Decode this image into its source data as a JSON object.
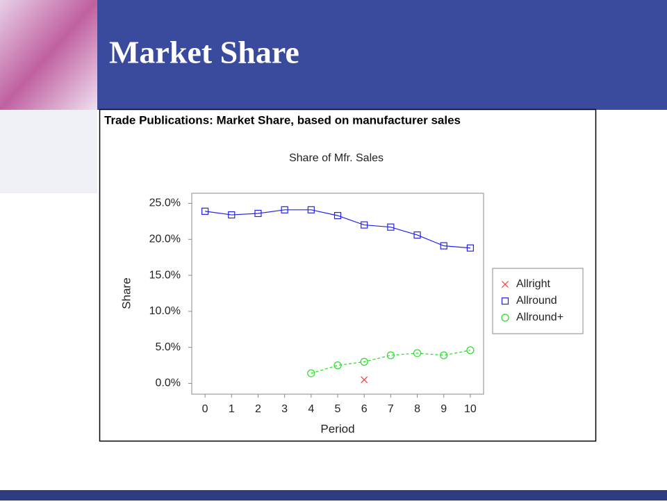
{
  "slide_title": "Market Share",
  "chart_data": {
    "type": "line",
    "heading": "Trade Publications: Market Share, based on manufacturer sales",
    "title": "Share of Mfr. Sales",
    "x_label": "Period",
    "y_label": "Share",
    "x": [
      0,
      1,
      2,
      3,
      4,
      5,
      6,
      7,
      8,
      9,
      10
    ],
    "series": [
      {
        "name": "Allright",
        "color": "#ff3333",
        "marker": "x",
        "line": "none",
        "values": [
          null,
          null,
          null,
          null,
          null,
          null,
          0.5,
          null,
          null,
          null,
          null
        ]
      },
      {
        "name": "Allround",
        "color": "#2222ee",
        "marker": "square",
        "line": "solid",
        "values": [
          23.9,
          23.4,
          23.6,
          24.1,
          24.1,
          23.3,
          22.0,
          21.7,
          20.6,
          19.1,
          18.8
        ]
      },
      {
        "name": "Allround+",
        "color": "#22dd22",
        "marker": "circle",
        "line": "dashed",
        "values": [
          null,
          null,
          null,
          null,
          1.4,
          2.5,
          3.0,
          3.9,
          4.2,
          3.9,
          4.6
        ]
      }
    ],
    "xlim": [
      -0.5,
      10.5
    ],
    "ylim": [
      -1.5,
      26.4
    ],
    "xticks": [
      0,
      1,
      2,
      3,
      4,
      5,
      6,
      7,
      8,
      9,
      10
    ],
    "yticks": [
      {
        "value": 0,
        "label": "0.0%"
      },
      {
        "value": 5,
        "label": "5.0%"
      },
      {
        "value": 10,
        "label": "10.0%"
      },
      {
        "value": 15,
        "label": "15.0%"
      },
      {
        "value": 20,
        "label": "20.0%"
      },
      {
        "value": 25,
        "label": "25.0%"
      }
    ],
    "grid": false,
    "legend": "right"
  }
}
